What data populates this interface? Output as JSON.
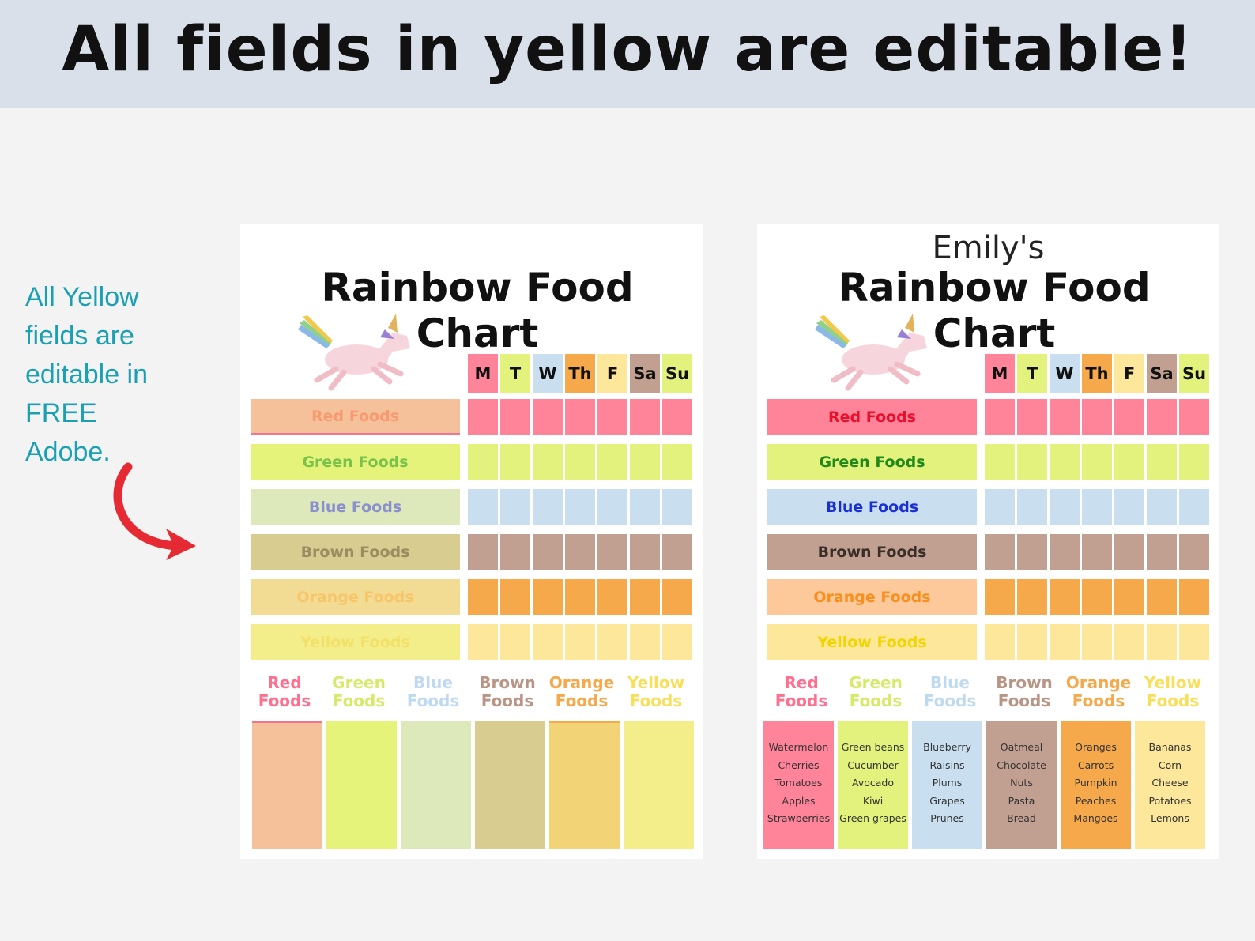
{
  "banner": {
    "title": "All fields in yellow are editable!"
  },
  "side_note": {
    "lines": [
      "All Yellow",
      "fields are",
      "editable in",
      "FREE",
      "Adobe."
    ]
  },
  "colors": {
    "banner_bg": "#d9e0ea",
    "note_text": "#1ba0b3",
    "arrow": "#e52a33",
    "red": "#ff8399",
    "green": "#e2f27c",
    "blue": "#c9dff0",
    "brown": "#c2a091",
    "orange": "#f6a94a",
    "yellow": "#fde79a"
  },
  "left_sheet": {
    "title": "Rainbow Food Chart",
    "days": [
      "M",
      "T",
      "W",
      "Th",
      "F",
      "Sa",
      "Su"
    ],
    "rows": [
      "Red Foods",
      "Green Foods",
      "Blue Foods",
      "Brown Foods",
      "Orange Foods",
      "Yellow Foods"
    ],
    "categories": [
      [
        "Red",
        "Foods"
      ],
      [
        "Green",
        "Foods"
      ],
      [
        "Blue",
        "Foods"
      ],
      [
        "Brown",
        "Foods"
      ],
      [
        "Orange",
        "Foods"
      ],
      [
        "Yellow",
        "Foods"
      ]
    ]
  },
  "right_sheet": {
    "owner": "Emily's",
    "title": "Rainbow Food Chart",
    "days": [
      "M",
      "T",
      "W",
      "Th",
      "F",
      "Sa",
      "Su"
    ],
    "rows": [
      "Red Foods",
      "Green Foods",
      "Blue Foods",
      "Brown Foods",
      "Orange Foods",
      "Yellow Foods"
    ],
    "categories": [
      [
        "Red",
        "Foods"
      ],
      [
        "Green",
        "Foods"
      ],
      [
        "Blue",
        "Foods"
      ],
      [
        "Brown",
        "Foods"
      ],
      [
        "Orange",
        "Foods"
      ],
      [
        "Yellow",
        "Foods"
      ]
    ],
    "food_lists": [
      [
        "Watermelon",
        "Cherries",
        "Tomatoes",
        "Apples",
        "Strawberries"
      ],
      [
        "Green beans",
        "Cucumber",
        "Avocado",
        "Kiwi",
        "Green grapes"
      ],
      [
        "Blueberry",
        "Raisins",
        "Plums",
        "Grapes",
        "Prunes"
      ],
      [
        "Oatmeal",
        "Chocolate",
        "Nuts",
        "Pasta",
        "Bread"
      ],
      [
        "Oranges",
        "Carrots",
        "Pumpkin",
        "Peaches",
        "Mangoes"
      ],
      [
        "Bananas",
        "Corn",
        "Cheese",
        "Potatoes",
        "Lemons"
      ]
    ]
  }
}
